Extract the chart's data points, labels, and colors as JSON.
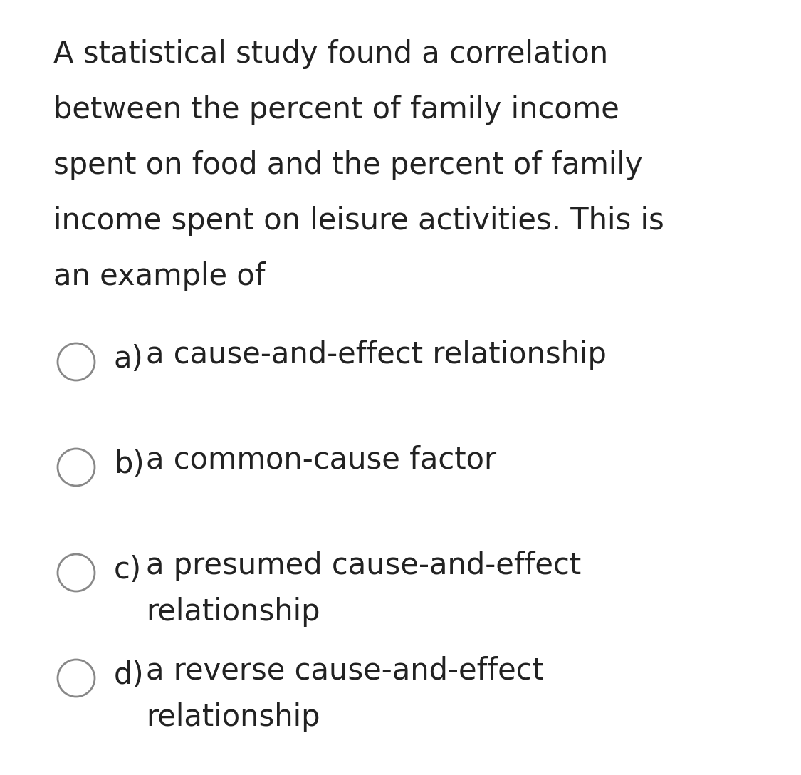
{
  "background_color": "#ffffff",
  "text_color": "#222222",
  "question_lines": [
    "A statistical study found a correlation",
    "between the percent of family income",
    "spent on food and the percent of family",
    "income spent on leisure activities. This is",
    "an example of"
  ],
  "options": [
    {
      "label": "a)",
      "line1": "a cause-and-effect relationship",
      "line2": null
    },
    {
      "label": "b)",
      "line1": "a common-cause factor",
      "line2": null
    },
    {
      "label": "c)",
      "line1": "a presumed cause-and-effect",
      "line2": "relationship"
    },
    {
      "label": "d)",
      "line1": "a reverse cause-and-effect",
      "line2": "relationship"
    }
  ],
  "question_fontsize": 30,
  "option_fontsize": 30,
  "figsize": [
    11.25,
    10.88
  ],
  "dpi": 100
}
